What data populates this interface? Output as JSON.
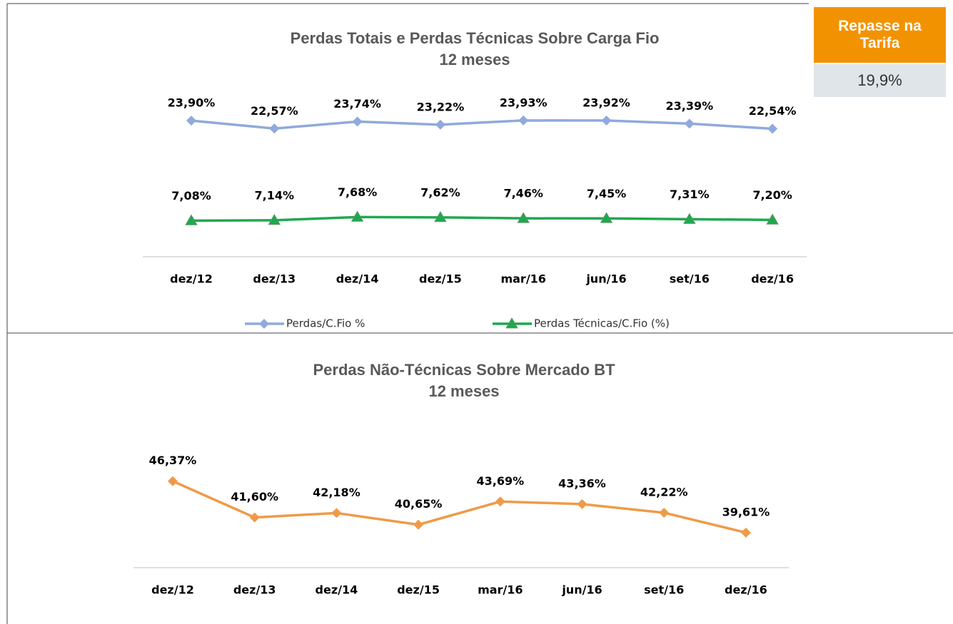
{
  "badge": {
    "title": "Repasse na Tarifa",
    "value": "19,9%"
  },
  "chart_data": [
    {
      "type": "line",
      "title": "Perdas Totais e Perdas Técnicas Sobre Carga Fio",
      "subtitle": "12 meses",
      "categories": [
        "dez/12",
        "dez/13",
        "dez/14",
        "dez/15",
        "mar/16",
        "jun/16",
        "set/16",
        "dez/16"
      ],
      "ylim": [
        1,
        28
      ],
      "legend": "bottom",
      "series": [
        {
          "name": "Perdas/C.Fio %",
          "color": "#8faadc",
          "marker": "diamond",
          "values": [
            23.9,
            22.57,
            23.74,
            23.22,
            23.93,
            23.92,
            23.39,
            22.54
          ],
          "value_labels": [
            "23,90%",
            "22,57%",
            "23,74%",
            "23,22%",
            "23,93%",
            "23,92%",
            "23,39%",
            "22,54%"
          ]
        },
        {
          "name": "Perdas Técnicas/C.Fio (%)",
          "color": "#1fa84f",
          "marker": "triangle",
          "values": [
            7.08,
            7.14,
            7.68,
            7.62,
            7.46,
            7.45,
            7.31,
            7.2
          ],
          "value_labels": [
            "7,08%",
            "7,14%",
            "7,68%",
            "7,62%",
            "7,46%",
            "7,45%",
            "7,31%",
            "7,20%"
          ]
        }
      ]
    },
    {
      "type": "line",
      "title": "Perdas Não-Técnicas Sobre Mercado BT",
      "subtitle": "12 meses",
      "categories": [
        "dez/12",
        "dez/13",
        "dez/14",
        "dez/15",
        "mar/16",
        "jun/16",
        "set/16",
        "dez/16"
      ],
      "ylim": [
        35,
        50
      ],
      "series": [
        {
          "color": "#f09a48",
          "marker": "diamond",
          "values": [
            46.37,
            41.6,
            42.18,
            40.65,
            43.69,
            43.36,
            42.22,
            39.61
          ],
          "value_labels": [
            "46,37%",
            "41,60%",
            "42,18%",
            "40,65%",
            "43,69%",
            "43,36%",
            "42,22%",
            "39,61%"
          ]
        }
      ]
    }
  ]
}
